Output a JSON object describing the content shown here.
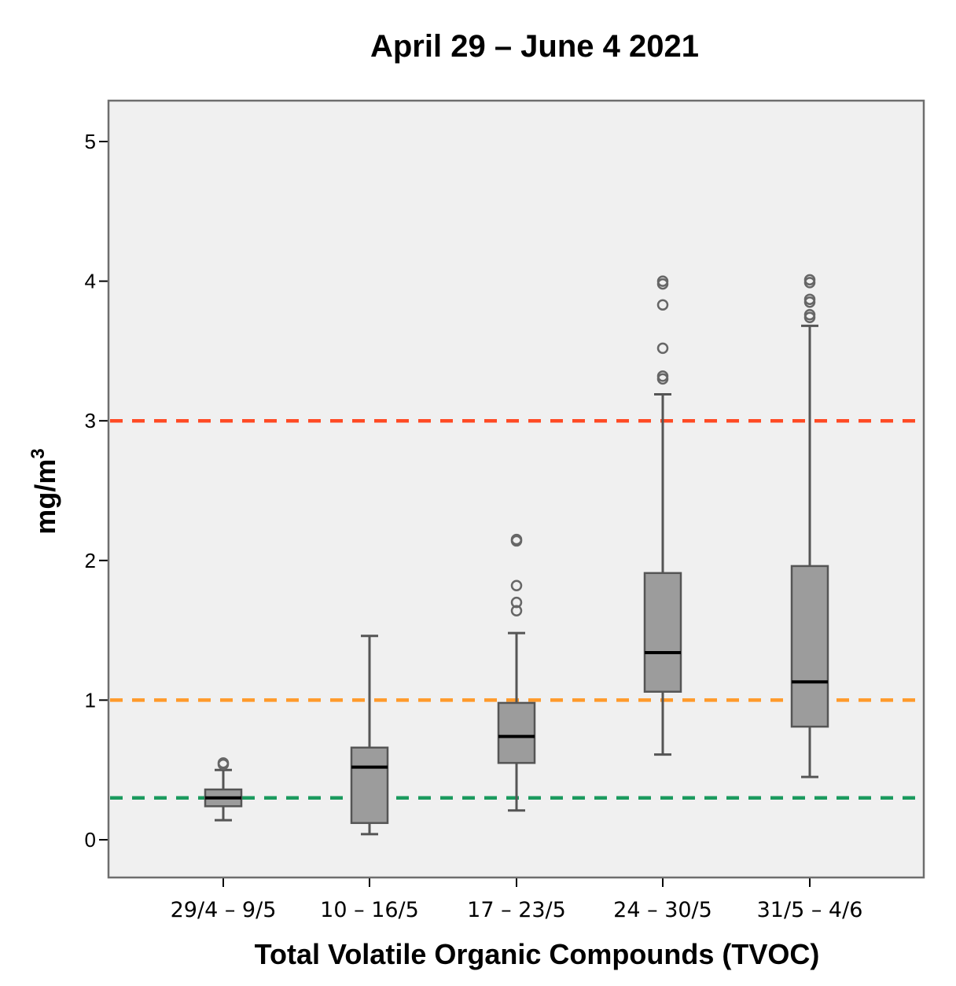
{
  "chart_data": {
    "type": "boxplot",
    "title": "April 29 – June 4 2021",
    "xlabel": "Total Volatile Organic Compounds (TVOC)",
    "ylabel": "mg/m",
    "ylabel_superscript": "3",
    "ylim": [
      -0.25,
      5.3
    ],
    "yticks": [
      {
        "value": 0,
        "label": "0"
      },
      {
        "value": 1,
        "label": "1"
      },
      {
        "value": 2,
        "label": "2"
      },
      {
        "value": 3,
        "label": "3"
      },
      {
        "value": 4,
        "label": "4"
      },
      {
        "value": 5,
        "label": "5"
      }
    ],
    "categories": [
      "29/4 – 9/5",
      "10 – 16/5",
      "17 – 23/5",
      "24 – 30/5",
      "31/5 – 4/6"
    ],
    "boxes": [
      {
        "category": "29/4 – 9/5",
        "whisker_low": 0.14,
        "q1": 0.24,
        "median": 0.3,
        "q3": 0.36,
        "whisker_high": 0.5,
        "outliers": [
          0.54,
          0.55
        ]
      },
      {
        "category": "10 – 16/5",
        "whisker_low": 0.04,
        "q1": 0.12,
        "median": 0.52,
        "q3": 0.66,
        "whisker_high": 1.46,
        "outliers": []
      },
      {
        "category": "17 – 23/5",
        "whisker_low": 0.21,
        "q1": 0.55,
        "median": 0.74,
        "q3": 0.98,
        "whisker_high": 1.48,
        "outliers": [
          1.64,
          1.7,
          1.82,
          2.14,
          2.15
        ]
      },
      {
        "category": "24 – 30/5",
        "whisker_low": 0.61,
        "q1": 1.06,
        "median": 1.34,
        "q3": 1.91,
        "whisker_high": 3.19,
        "outliers": [
          3.3,
          3.32,
          3.52,
          3.83,
          3.98,
          4.0
        ]
      },
      {
        "category": "31/5 – 4/6",
        "whisker_low": 0.45,
        "q1": 0.81,
        "median": 1.13,
        "q3": 1.96,
        "whisker_high": 3.68,
        "outliers": [
          3.74,
          3.76,
          3.85,
          3.87,
          3.99,
          4.01
        ]
      }
    ],
    "reference_lines": [
      {
        "name": "red-threshold",
        "value": 3.0,
        "color": "#ff4a23"
      },
      {
        "name": "orange-threshold",
        "value": 1.0,
        "color": "#ff9a2a"
      },
      {
        "name": "green-threshold",
        "value": 0.3,
        "color": "#1b9a5e"
      }
    ],
    "colors": {
      "plot_background": "#f0f0f0",
      "frame": "#6e6e6e",
      "box_fill": "#9c9c9c",
      "box_stroke": "#555555",
      "median": "#000000",
      "outlier": "#666666"
    }
  }
}
